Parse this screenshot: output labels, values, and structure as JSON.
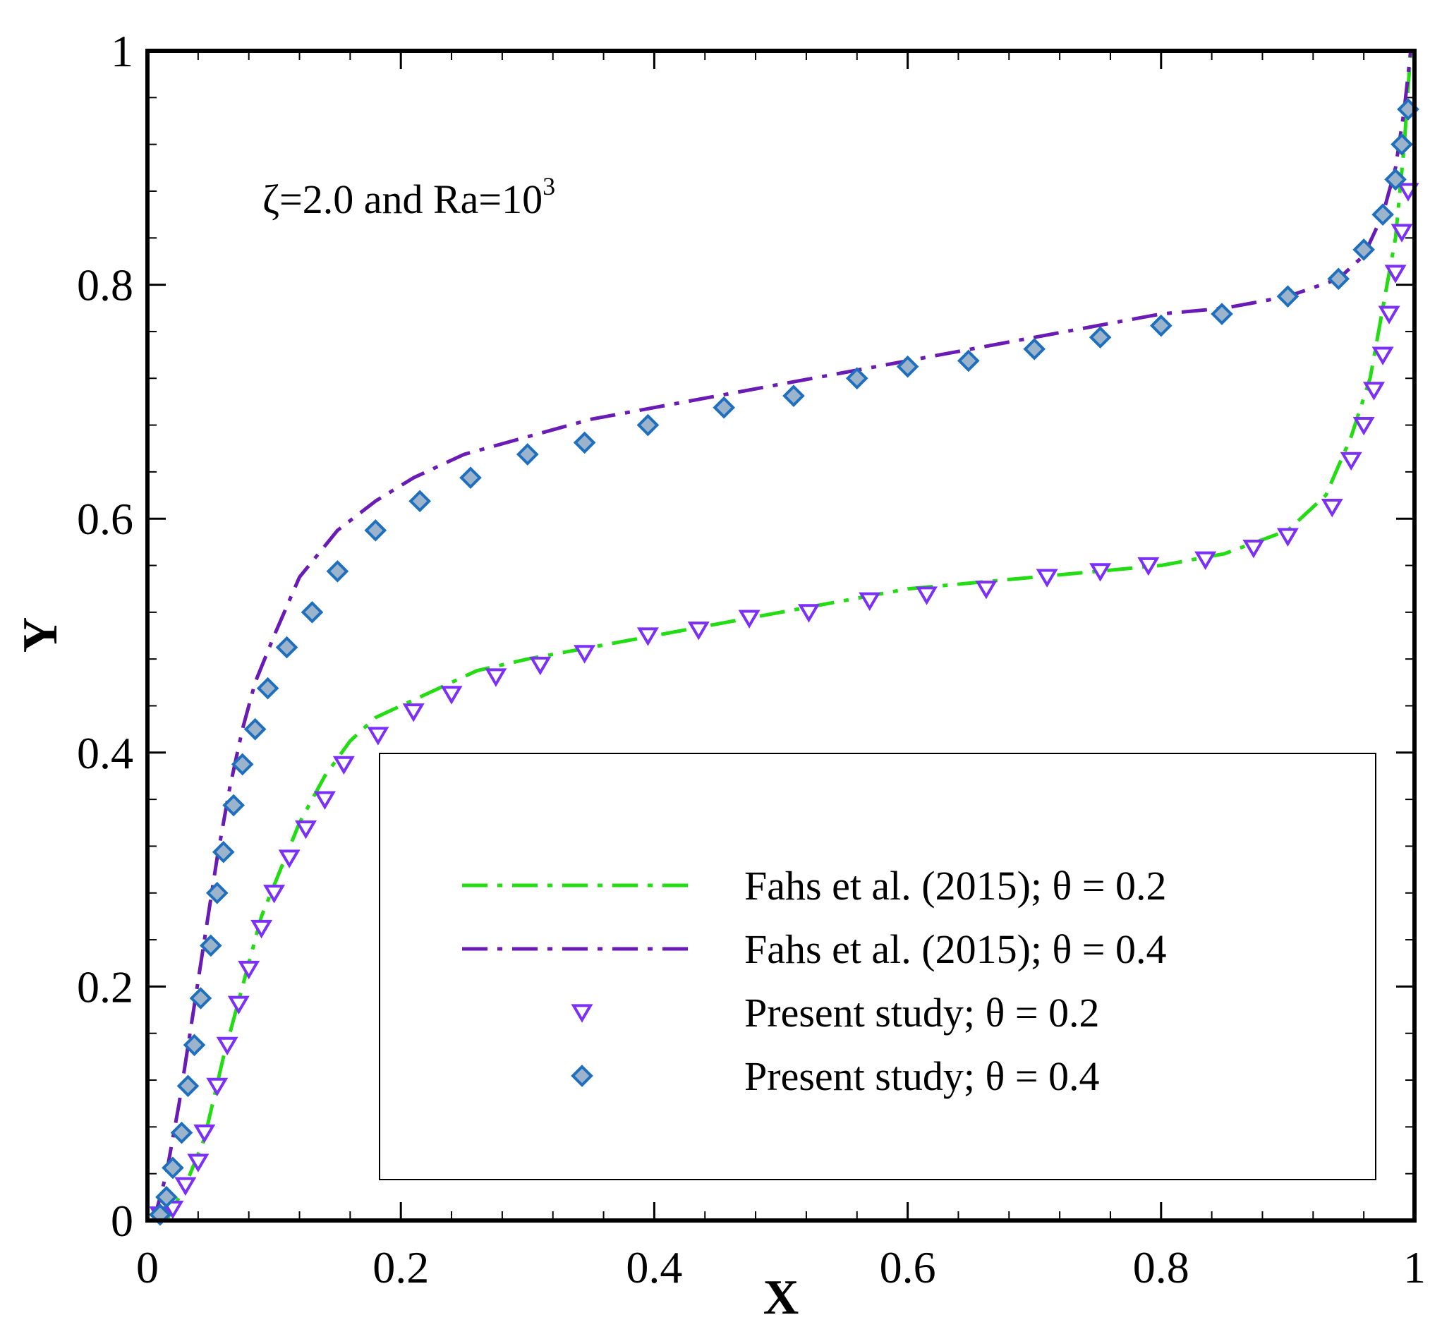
{
  "chart_data": {
    "type": "line",
    "xlabel": "X",
    "ylabel": "Y",
    "xlim": [
      0,
      1
    ],
    "ylim": [
      0,
      1
    ],
    "xticks": [
      {
        "value": 0,
        "label": "0"
      },
      {
        "value": 0.2,
        "label": "0.2"
      },
      {
        "value": 0.4,
        "label": "0.4"
      },
      {
        "value": 0.6,
        "label": "0.6"
      },
      {
        "value": 0.8,
        "label": "0.8"
      },
      {
        "value": 1,
        "label": "1"
      }
    ],
    "yticks": [
      {
        "value": 0,
        "label": "0"
      },
      {
        "value": 0.2,
        "label": "0.2"
      },
      {
        "value": 0.4,
        "label": "0.4"
      },
      {
        "value": 0.6,
        "label": "0.6"
      },
      {
        "value": 0.8,
        "label": "0.8"
      },
      {
        "value": 1,
        "label": "1"
      }
    ],
    "annotation": {
      "text": "ζ=2.0 and Ra=10",
      "superscript": "3"
    },
    "legend_position": "bottom-right",
    "series": [
      {
        "name": "Fahs et al. (2015); θ = 0.2",
        "style": "dash-dot-line",
        "color": "#22dd11",
        "x": [
          0.015,
          0.03,
          0.045,
          0.06,
          0.075,
          0.09,
          0.105,
          0.12,
          0.14,
          0.16,
          0.18,
          0.2,
          0.23,
          0.26,
          0.3,
          0.35,
          0.4,
          0.45,
          0.5,
          0.55,
          0.6,
          0.65,
          0.7,
          0.75,
          0.8,
          0.85,
          0.9,
          0.93,
          0.95,
          0.965,
          0.975,
          0.985,
          0.992,
          0.997
        ],
        "y": [
          0.0,
          0.03,
          0.07,
          0.14,
          0.2,
          0.26,
          0.3,
          0.34,
          0.38,
          0.41,
          0.43,
          0.44,
          0.455,
          0.47,
          0.48,
          0.49,
          0.5,
          0.51,
          0.52,
          0.53,
          0.54,
          0.545,
          0.55,
          0.555,
          0.56,
          0.57,
          0.59,
          0.62,
          0.67,
          0.72,
          0.78,
          0.84,
          0.92,
          1.0
        ]
      },
      {
        "name": "Fahs et al. (2015); θ = 0.4",
        "style": "dash-dot-line",
        "color": "#6a1ab5",
        "x": [
          0.005,
          0.015,
          0.025,
          0.035,
          0.045,
          0.055,
          0.065,
          0.075,
          0.085,
          0.1,
          0.12,
          0.15,
          0.18,
          0.21,
          0.25,
          0.3,
          0.35,
          0.4,
          0.45,
          0.5,
          0.55,
          0.6,
          0.65,
          0.7,
          0.75,
          0.8,
          0.85,
          0.9,
          0.94,
          0.96,
          0.975,
          0.985,
          0.992,
          0.997
        ],
        "y": [
          0.0,
          0.04,
          0.1,
          0.17,
          0.24,
          0.31,
          0.37,
          0.42,
          0.46,
          0.5,
          0.55,
          0.59,
          0.615,
          0.635,
          0.655,
          0.67,
          0.685,
          0.695,
          0.705,
          0.715,
          0.725,
          0.735,
          0.745,
          0.755,
          0.765,
          0.775,
          0.78,
          0.79,
          0.805,
          0.825,
          0.86,
          0.9,
          0.95,
          1.0
        ]
      },
      {
        "name": "Present study; θ = 0.2",
        "style": "marker-triangle-down",
        "color": "#7b2ff7",
        "x": [
          0.01,
          0.02,
          0.03,
          0.04,
          0.045,
          0.055,
          0.063,
          0.072,
          0.08,
          0.09,
          0.1,
          0.112,
          0.125,
          0.14,
          0.155,
          0.182,
          0.21,
          0.24,
          0.275,
          0.31,
          0.345,
          0.395,
          0.435,
          0.475,
          0.522,
          0.57,
          0.615,
          0.662,
          0.71,
          0.752,
          0.79,
          0.835,
          0.873,
          0.9,
          0.935,
          0.95,
          0.96,
          0.968,
          0.975,
          0.98,
          0.985,
          0.99,
          0.995
        ],
        "y": [
          0.005,
          0.01,
          0.03,
          0.05,
          0.075,
          0.115,
          0.15,
          0.185,
          0.215,
          0.25,
          0.28,
          0.31,
          0.335,
          0.36,
          0.39,
          0.415,
          0.435,
          0.45,
          0.465,
          0.475,
          0.485,
          0.5,
          0.505,
          0.515,
          0.52,
          0.53,
          0.535,
          0.54,
          0.55,
          0.555,
          0.56,
          0.565,
          0.575,
          0.585,
          0.61,
          0.65,
          0.68,
          0.71,
          0.74,
          0.775,
          0.81,
          0.845,
          0.88
        ]
      },
      {
        "name": "Present study; θ = 0.4",
        "style": "marker-diamond",
        "color": "#1f6fbf",
        "x": [
          0.01,
          0.015,
          0.02,
          0.027,
          0.032,
          0.037,
          0.042,
          0.05,
          0.055,
          0.06,
          0.068,
          0.075,
          0.085,
          0.095,
          0.11,
          0.13,
          0.15,
          0.18,
          0.215,
          0.255,
          0.3,
          0.345,
          0.395,
          0.455,
          0.51,
          0.56,
          0.6,
          0.648,
          0.7,
          0.752,
          0.8,
          0.848,
          0.9,
          0.94,
          0.96,
          0.975,
          0.985,
          0.99,
          0.995
        ],
        "y": [
          0.005,
          0.02,
          0.045,
          0.075,
          0.115,
          0.15,
          0.19,
          0.235,
          0.28,
          0.315,
          0.355,
          0.39,
          0.42,
          0.455,
          0.49,
          0.52,
          0.555,
          0.59,
          0.615,
          0.635,
          0.655,
          0.665,
          0.68,
          0.695,
          0.705,
          0.72,
          0.73,
          0.735,
          0.745,
          0.755,
          0.765,
          0.775,
          0.79,
          0.805,
          0.83,
          0.86,
          0.89,
          0.92,
          0.95
        ]
      }
    ]
  }
}
